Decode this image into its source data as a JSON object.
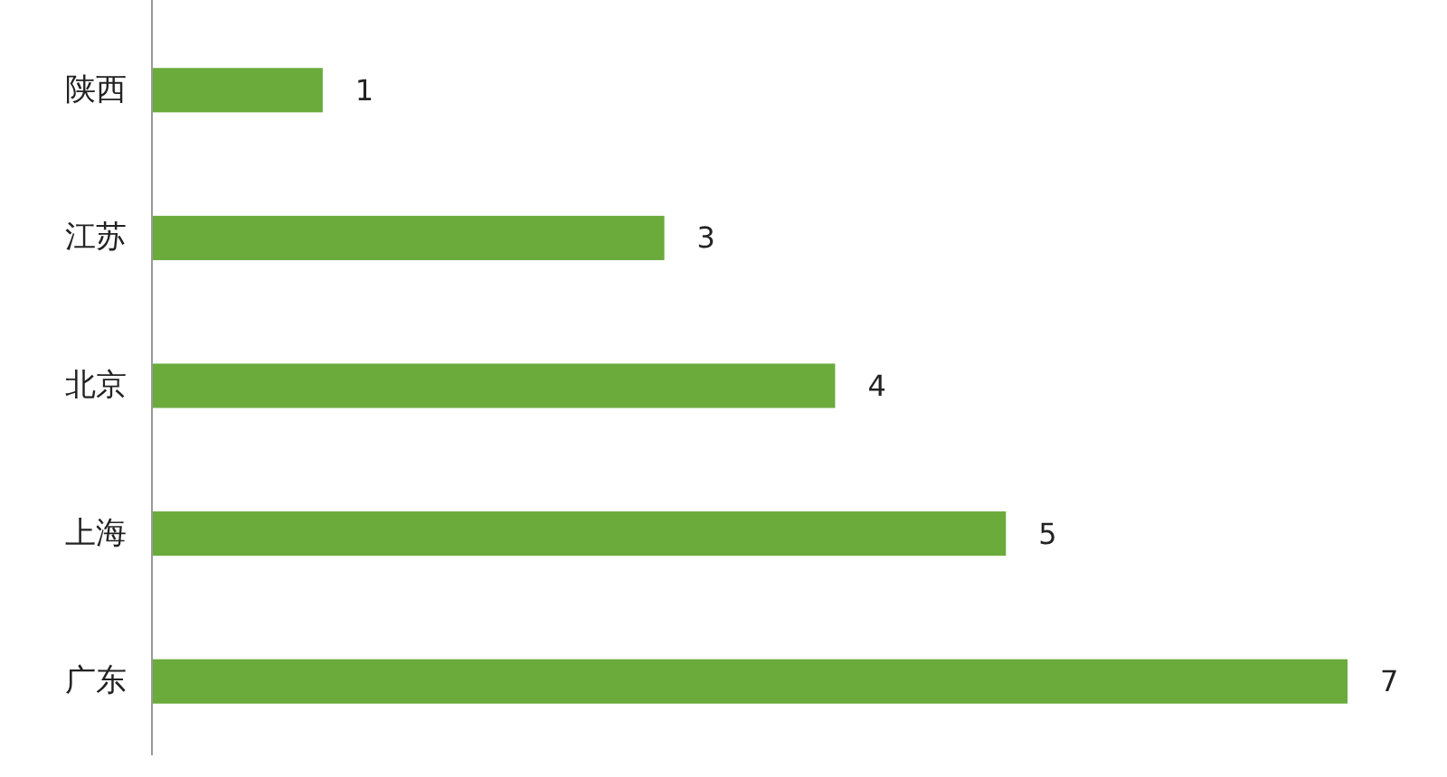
{
  "chart_data": {
    "type": "bar",
    "orientation": "horizontal",
    "categories": [
      "陕西",
      "江苏",
      "北京",
      "上海",
      "广东"
    ],
    "values": [
      1,
      3,
      4,
      5,
      7
    ],
    "color": "#6aab3c",
    "data_labels": true
  }
}
